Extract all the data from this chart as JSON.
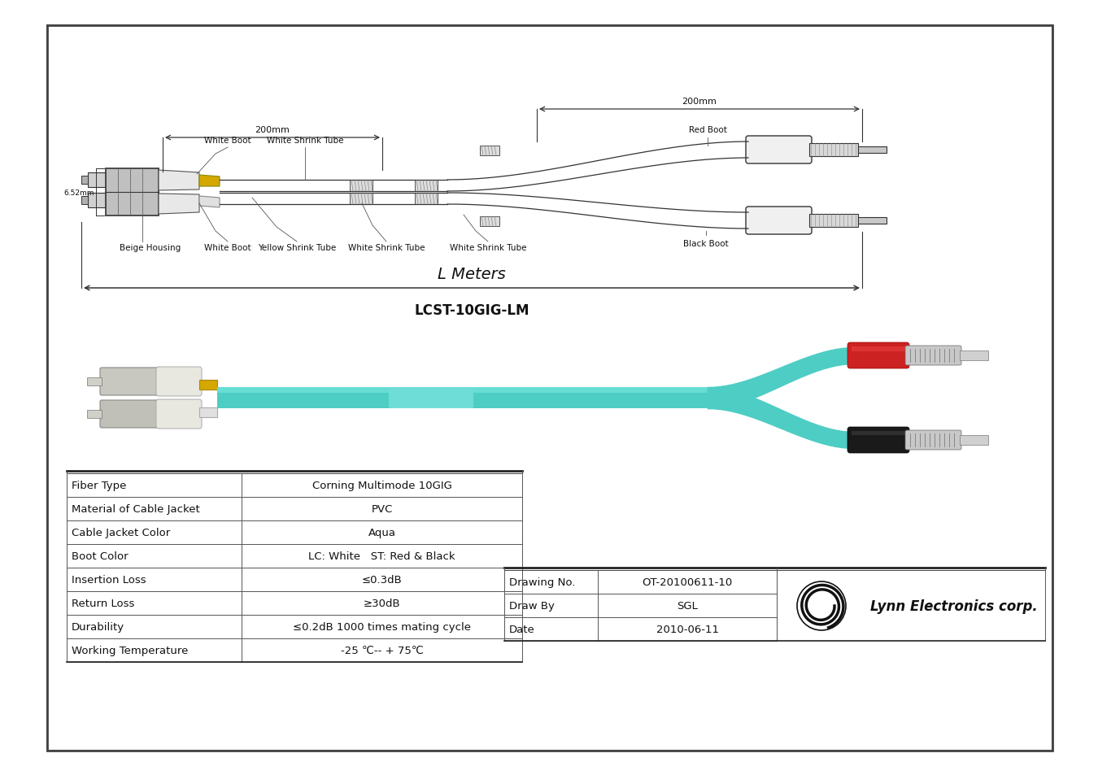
{
  "bg_color": "#ffffff",
  "aqua_color": "#4ecdc4",
  "red_color": "#cc2222",
  "black_boot_color": "#222222",
  "yellow_color": "#d4a800",
  "white_boot_color": "#e8e8e8",
  "beige_color": "#c8c0a0",
  "gray_line": "#444444",
  "light_gray": "#cccccc",
  "table_rows": [
    [
      "Fiber Type",
      "Corning Multimode 10GIG"
    ],
    [
      "Material of Cable Jacket",
      "PVC"
    ],
    [
      "Cable Jacket Color",
      "Aqua"
    ],
    [
      "Boot Color",
      "LC: White   ST: Red & Black"
    ],
    [
      "Insertion Loss",
      "≤0.3dB"
    ],
    [
      "Return Loss",
      "≥30dB"
    ],
    [
      "Durability",
      "≤0.2dB 1000 times mating cycle"
    ],
    [
      "Working Temperature",
      "-25 ℃-- + 75℃"
    ]
  ],
  "info_rows": [
    [
      "Drawing No.",
      "OT-20100611-10"
    ],
    [
      "Draw By",
      "SGL"
    ],
    [
      "Date",
      "2010-06-11"
    ]
  ],
  "model_name": "LCST-10GIG-LM",
  "l_meters_label": "L Meters"
}
